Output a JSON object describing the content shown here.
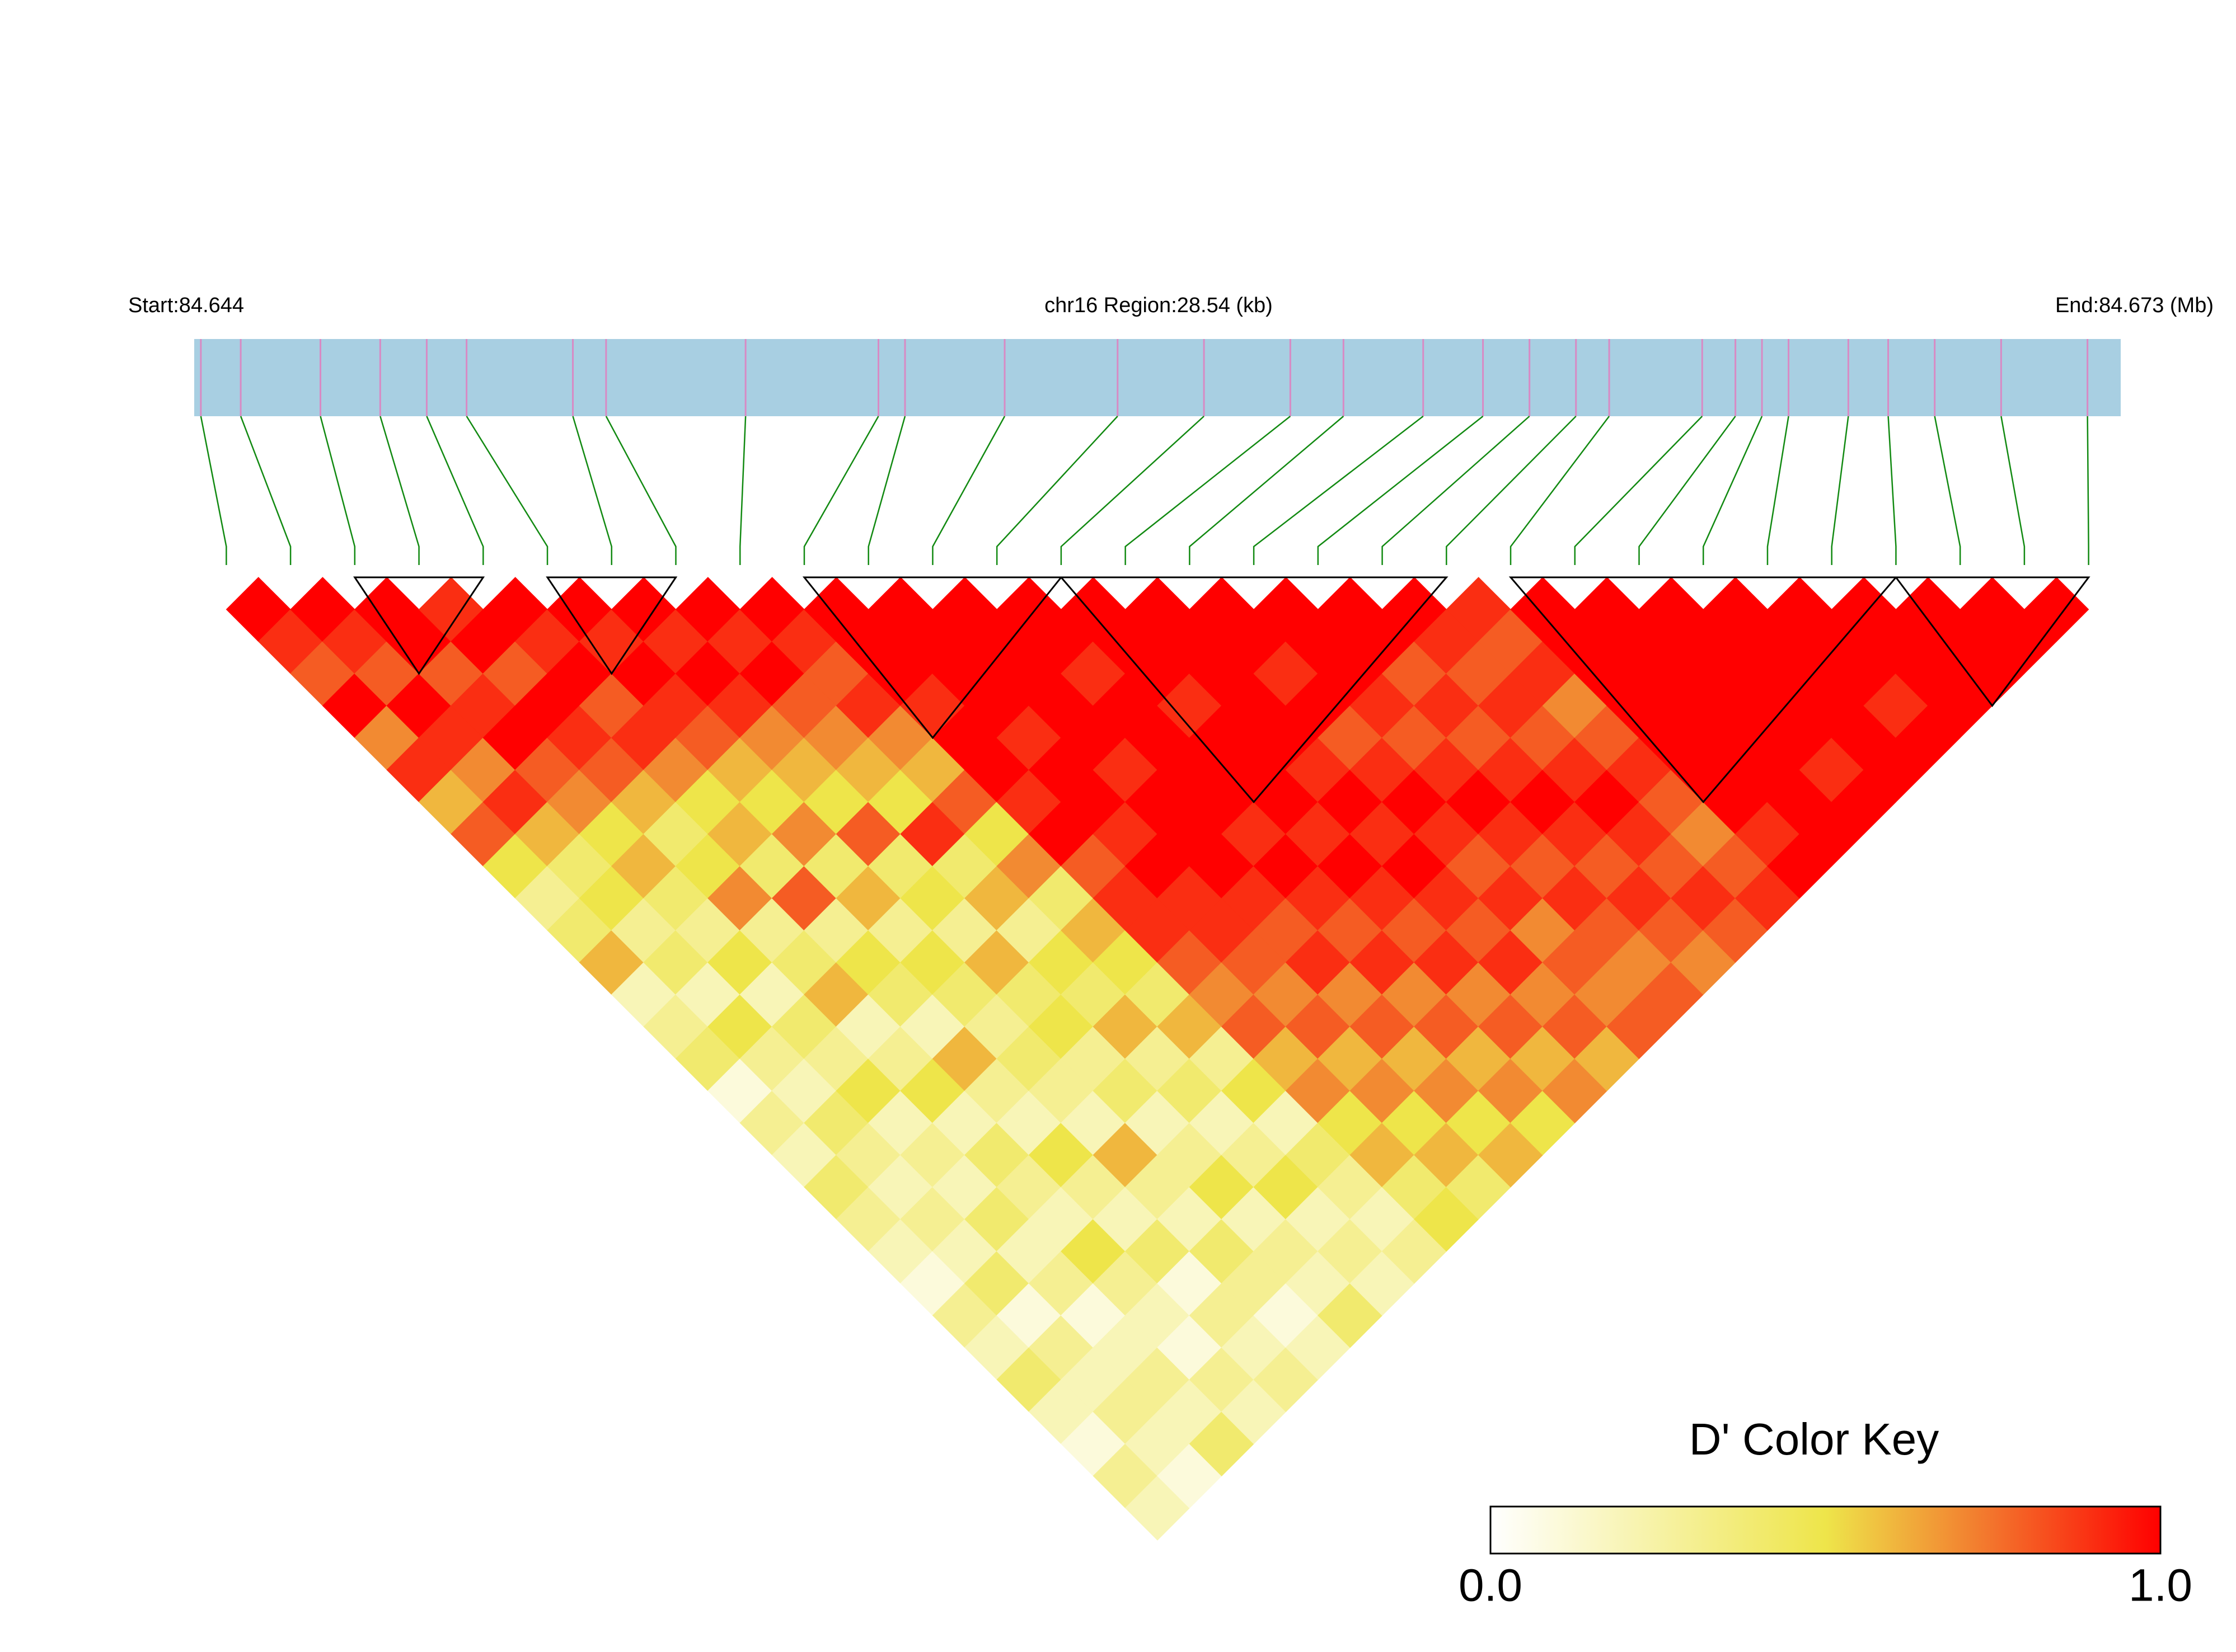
{
  "chart_data": {
    "type": "ld-heatmap",
    "region_label": "chr16 Region:28.54 (kb)",
    "start": {
      "value": 84.644,
      "label": "Start:84.644"
    },
    "end": {
      "value": 84.673,
      "label": "End:84.673 (Mb)"
    },
    "bar_color": "#a8cfe2",
    "snp_tick_color": "#d88ac4",
    "link_color": "#128a12",
    "block_color": "#000000",
    "snp_positions": [
      84.6441,
      84.6447,
      84.6459,
      84.6468,
      84.6475,
      84.6481,
      84.6497,
      84.6502,
      84.6523,
      84.6543,
      84.6547,
      84.6562,
      84.6579,
      84.6592,
      84.6605,
      84.6613,
      84.6625,
      84.6634,
      84.6641,
      84.6648,
      84.6653,
      84.6667,
      84.6672,
      84.6676,
      84.668,
      84.6689,
      84.6695,
      84.6702,
      84.6712,
      84.6725
    ],
    "dprime": [
      [
        1,
        0.9,
        0.8,
        1,
        0.7,
        0.9,
        0.6,
        0.8,
        0.5,
        0.3,
        0.4,
        0.6,
        0.2,
        0.3,
        0.4,
        0.1,
        0.3,
        0.2,
        0.4,
        0.3,
        0.2,
        0.1,
        0.3,
        0.2,
        0.4,
        0.2,
        0.1,
        0.3,
        0.2
      ],
      [
        1,
        0.9,
        0.8,
        1,
        0.9,
        0.7,
        0.9,
        0.6,
        0.4,
        0.5,
        0.3,
        0.4,
        0.2,
        0.5,
        0.3,
        0.2,
        0.4,
        0.3,
        0.2,
        0.3,
        0.2,
        0.4,
        0.1,
        0.3,
        0.2,
        0.3,
        0.2,
        0.1
      ],
      [
        1,
        1,
        0.8,
        0.9,
        1,
        0.8,
        0.7,
        0.5,
        0.6,
        0.4,
        0.3,
        0.5,
        0.2,
        0.4,
        0.3,
        0.5,
        0.2,
        0.3,
        0.2,
        0.4,
        0.2,
        0.3,
        0.1,
        0.2,
        0.3,
        0.2,
        0.4
      ],
      [
        0.9,
        1,
        0.8,
        1,
        0.9,
        0.8,
        0.6,
        0.4,
        0.5,
        0.7,
        0.3,
        0.4,
        0.6,
        0.2,
        0.3,
        0.5,
        0.2,
        0.4,
        0.3,
        0.2,
        0.5,
        0.3,
        0.2,
        0.1,
        0.3,
        0.2
      ],
      [
        1,
        0.9,
        1,
        0.8,
        0.9,
        0.7,
        0.5,
        0.6,
        0.4,
        0.8,
        0.3,
        0.5,
        0.4,
        0.2,
        0.6,
        0.3,
        0.2,
        0.5,
        0.3,
        0.2,
        0.4,
        0.1,
        0.3,
        0.2,
        0.3
      ],
      [
        1,
        0.9,
        1,
        0.9,
        0.8,
        0.6,
        0.5,
        0.7,
        0.4,
        0.6,
        0.3,
        0.5,
        0.4,
        0.3,
        0.4,
        0.3,
        0.2,
        0.6,
        0.3,
        0.2,
        0.4,
        0.3,
        0.1,
        0.2
      ],
      [
        1,
        0.9,
        1,
        0.9,
        0.7,
        0.6,
        0.5,
        0.8,
        0.4,
        0.5,
        0.3,
        0.6,
        0.4,
        0.5,
        0.3,
        0.4,
        0.2,
        0.3,
        0.5,
        0.2,
        0.3,
        0.2,
        0.4
      ],
      [
        1,
        0.9,
        1,
        0.8,
        0.7,
        0.6,
        0.5,
        0.9,
        0.4,
        0.6,
        0.3,
        0.5,
        0.4,
        0.6,
        0.3,
        0.4,
        0.2,
        0.3,
        0.5,
        0.2,
        0.3,
        0.2
      ],
      [
        1,
        0.9,
        0.8,
        0.9,
        0.7,
        0.6,
        0.8,
        0.5,
        0.7,
        0.4,
        0.6,
        0.5,
        0.4,
        0.6,
        0.3,
        0.5,
        0.2,
        0.4,
        0.3,
        0.2,
        0.3
      ],
      [
        1,
        1,
        1,
        0.9,
        1,
        1,
        0.9,
        1,
        0.8,
        0.9,
        0.9,
        0.8,
        0.7,
        0.8,
        0.6,
        0.7,
        0.5,
        0.6,
        0.4,
        0.5
      ],
      [
        1,
        1,
        1,
        1,
        0.9,
        1,
        1,
        0.9,
        1,
        0.9,
        0.9,
        0.8,
        0.7,
        0.8,
        0.6,
        0.7,
        0.5,
        0.6,
        0.4
      ],
      [
        1,
        1,
        1,
        1,
        1,
        0.9,
        1,
        1,
        1,
        0.9,
        0.8,
        0.9,
        0.7,
        0.8,
        0.6,
        0.7,
        0.5,
        0.6
      ],
      [
        1,
        1,
        0.9,
        1,
        1,
        1,
        1,
        0.9,
        1,
        0.9,
        0.8,
        0.9,
        0.7,
        0.8,
        0.6,
        0.7,
        0.5
      ],
      [
        1,
        1,
        1,
        0.9,
        1,
        1,
        1,
        0.9,
        1,
        0.9,
        0.8,
        0.9,
        0.7,
        0.8,
        0.6,
        0.7
      ],
      [
        1,
        1,
        1,
        1,
        1,
        0.9,
        1,
        0.9,
        1,
        0.9,
        0.8,
        0.9,
        0.7,
        0.8,
        0.6
      ],
      [
        1,
        1,
        0.9,
        1,
        0.8,
        0.9,
        1,
        0.9,
        0.8,
        0.9,
        0.7,
        0.8,
        0.7,
        0.8
      ],
      [
        1,
        1,
        1,
        0.9,
        0.8,
        0.9,
        1,
        0.9,
        0.8,
        0.9,
        0.8,
        0.7,
        0.8
      ],
      [
        1,
        1,
        0.8,
        0.9,
        0.8,
        0.9,
        1,
        0.9,
        0.8,
        0.9,
        0.8,
        0.7
      ],
      [
        1,
        0.9,
        0.8,
        0.9,
        0.8,
        0.9,
        1,
        0.9,
        0.8,
        0.9,
        0.8
      ],
      [
        0.9,
        0.8,
        0.9,
        0.7,
        0.8,
        0.9,
        0.8,
        0.7,
        0.8,
        0.9
      ],
      [
        1,
        1,
        1,
        1,
        1,
        1,
        1,
        0.9,
        1
      ],
      [
        1,
        1,
        1,
        1,
        1,
        1,
        1,
        1
      ],
      [
        1,
        1,
        1,
        1,
        1,
        0.9,
        1
      ],
      [
        1,
        1,
        1,
        1,
        1,
        1
      ],
      [
        1,
        1,
        1,
        0.9,
        1
      ],
      [
        1,
        1,
        1,
        1
      ],
      [
        1,
        1,
        1
      ],
      [
        1,
        1
      ],
      [
        1
      ]
    ],
    "blocks": [
      [
        2,
        4
      ],
      [
        5,
        7
      ],
      [
        9,
        13
      ],
      [
        13,
        19
      ],
      [
        20,
        26
      ],
      [
        26,
        29
      ]
    ],
    "colorkey": {
      "title": "D' Color Key",
      "colorscale": [
        [
          0,
          "#ffffff"
        ],
        [
          0.5,
          "#eee54a"
        ],
        [
          0.75,
          "#f3732c"
        ],
        [
          1,
          "#ff0000"
        ]
      ],
      "ticks": [
        {
          "value": 0,
          "label": "0.0"
        },
        {
          "value": 1,
          "label": "1.0"
        }
      ]
    }
  }
}
